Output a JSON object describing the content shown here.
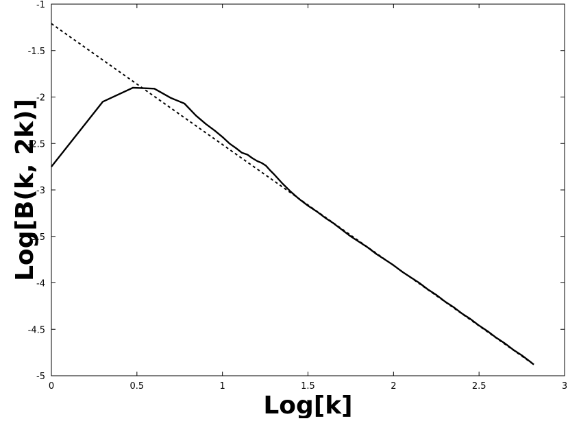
{
  "chart_data": {
    "type": "line",
    "title": "",
    "xlabel": "Log[k]",
    "ylabel": "Log[B(k, 2k)]",
    "xlim": [
      0,
      3
    ],
    "ylim": [
      -5,
      -1
    ],
    "x_ticks": [
      0,
      0.5,
      1,
      1.5,
      2,
      2.5,
      3
    ],
    "y_ticks": [
      -1,
      -1.5,
      -2,
      -2.5,
      -3,
      -3.5,
      -4,
      -4.5,
      -5
    ],
    "x_tick_labels": [
      "0",
      "0.5",
      "1",
      "1.5",
      "2",
      "2.5",
      "3"
    ],
    "y_tick_labels": [
      "-1",
      "-1.5",
      "-2",
      "-2.5",
      "-3",
      "-3.5",
      "-4",
      "-4.5",
      "-5"
    ],
    "grid": false,
    "legend": "none",
    "series": [
      {
        "style": "solid",
        "color": "#000000",
        "x": [
          0,
          0.301,
          0.477,
          0.602,
          0.699,
          0.778,
          0.845,
          0.903,
          0.954,
          1.0,
          1.041,
          1.079,
          1.114,
          1.146,
          1.176,
          1.204,
          1.23,
          1.255,
          1.279,
          1.301,
          1.35,
          1.4,
          1.45,
          1.5,
          1.55,
          1.6,
          1.65,
          1.7,
          1.75,
          1.8,
          1.85,
          1.9,
          1.95,
          2.0,
          2.05,
          2.1,
          2.15,
          2.2,
          2.25,
          2.3,
          2.35,
          2.4,
          2.45,
          2.5,
          2.55,
          2.6,
          2.65,
          2.7,
          2.75,
          2.8,
          2.82
        ],
        "y": [
          -2.75,
          -2.05,
          -1.9,
          -1.91,
          -2.01,
          -2.07,
          -2.2,
          -2.29,
          -2.36,
          -2.43,
          -2.5,
          -2.55,
          -2.6,
          -2.62,
          -2.66,
          -2.69,
          -2.71,
          -2.74,
          -2.79,
          -2.83,
          -2.93,
          -3.02,
          -3.1,
          -3.17,
          -3.23,
          -3.3,
          -3.36,
          -3.43,
          -3.5,
          -3.56,
          -3.62,
          -3.69,
          -3.75,
          -3.81,
          -3.88,
          -3.94,
          -4.0,
          -4.07,
          -4.13,
          -4.2,
          -4.26,
          -4.33,
          -4.39,
          -4.46,
          -4.52,
          -4.59,
          -4.65,
          -4.72,
          -4.78,
          -4.85,
          -4.88
        ]
      },
      {
        "style": "dashed",
        "color": "#000000",
        "x": [
          0,
          2.82
        ],
        "y": [
          -1.21,
          -4.88
        ]
      }
    ]
  }
}
